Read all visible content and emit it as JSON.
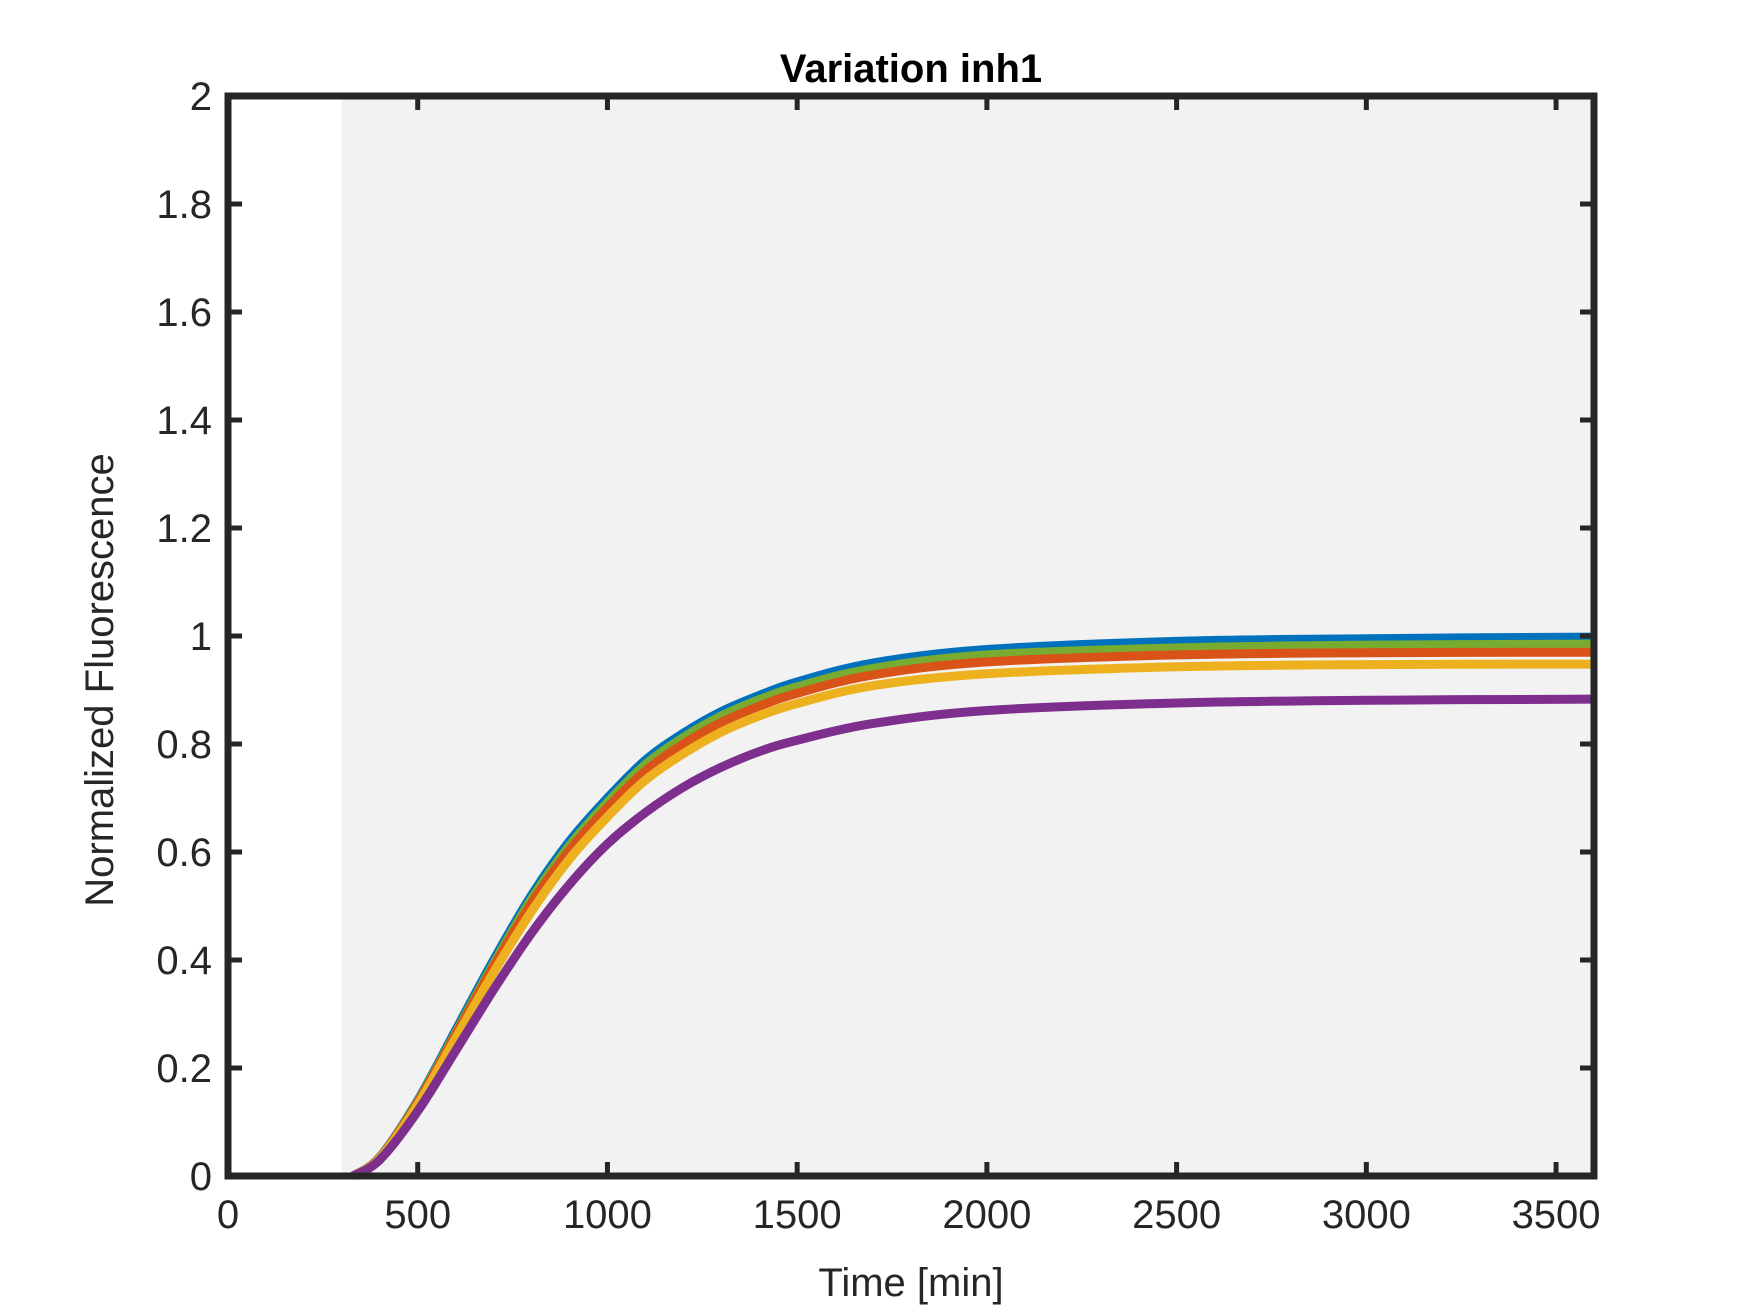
{
  "chart_data": {
    "type": "line",
    "title": "Variation inh1",
    "xlabel": "Time [min]",
    "ylabel": "Normalized Fluorescence",
    "xlim": [
      0,
      3600
    ],
    "ylim": [
      0,
      2
    ],
    "xticks": [
      0,
      500,
      1000,
      1500,
      2000,
      2500,
      3000,
      3500
    ],
    "yticks": [
      0,
      0.2,
      0.4,
      0.6,
      0.8,
      1,
      1.2,
      1.4,
      1.6,
      1.8,
      2
    ],
    "xtick_labels": [
      "0",
      "500",
      "1000",
      "1500",
      "2000",
      "2500",
      "3000",
      "3500"
    ],
    "ytick_labels": [
      "0",
      "0.2",
      "0.4",
      "0.6",
      "0.8",
      "1",
      "1.2",
      "1.4",
      "1.6",
      "1.8",
      "2"
    ],
    "grid": false,
    "background": {
      "shaded_region_x": [
        300,
        3600
      ],
      "shaded_color": "#f2f2f2"
    },
    "axis_color": "#262626",
    "series": [
      {
        "color": "#0072bd",
        "x": [
          330,
          400,
          500,
          600,
          700,
          800,
          900,
          1000,
          1100,
          1200,
          1300,
          1400,
          1500,
          1700,
          2000,
          2500,
          3000,
          3600
        ],
        "y": [
          0,
          0.035,
          0.14,
          0.27,
          0.4,
          0.52,
          0.62,
          0.7,
          0.77,
          0.82,
          0.86,
          0.89,
          0.915,
          0.95,
          0.975,
          0.99,
          0.995,
          0.998
        ]
      },
      {
        "color": "#77ac30",
        "x": [
          330,
          400,
          500,
          600,
          700,
          800,
          900,
          1000,
          1100,
          1200,
          1300,
          1400,
          1500,
          1700,
          2000,
          2500,
          3000,
          3600
        ],
        "y": [
          0,
          0.034,
          0.138,
          0.265,
          0.393,
          0.513,
          0.612,
          0.692,
          0.762,
          0.812,
          0.852,
          0.882,
          0.906,
          0.94,
          0.965,
          0.978,
          0.983,
          0.985
        ]
      },
      {
        "color": "#d95319",
        "x": [
          330,
          400,
          500,
          600,
          700,
          800,
          900,
          1000,
          1100,
          1200,
          1300,
          1400,
          1500,
          1700,
          2000,
          2500,
          3000,
          3600
        ],
        "y": [
          0,
          0.034,
          0.136,
          0.262,
          0.388,
          0.505,
          0.603,
          0.682,
          0.75,
          0.8,
          0.84,
          0.87,
          0.894,
          0.928,
          0.952,
          0.965,
          0.969,
          0.97
        ]
      },
      {
        "color": "#edb120",
        "x": [
          330,
          400,
          500,
          600,
          700,
          800,
          900,
          1000,
          1100,
          1200,
          1300,
          1400,
          1500,
          1700,
          2000,
          2500,
          3000,
          3600
        ],
        "y": [
          0,
          0.033,
          0.132,
          0.255,
          0.377,
          0.49,
          0.587,
          0.665,
          0.733,
          0.782,
          0.822,
          0.852,
          0.875,
          0.908,
          0.93,
          0.943,
          0.947,
          0.948
        ]
      },
      {
        "color": "#7e2f8e",
        "x": [
          330,
          400,
          500,
          600,
          700,
          800,
          900,
          1000,
          1100,
          1200,
          1300,
          1400,
          1500,
          1700,
          2000,
          2500,
          3000,
          3600
        ],
        "y": [
          0,
          0.03,
          0.12,
          0.232,
          0.345,
          0.45,
          0.54,
          0.615,
          0.673,
          0.72,
          0.757,
          0.786,
          0.807,
          0.838,
          0.862,
          0.876,
          0.881,
          0.883
        ]
      }
    ]
  }
}
